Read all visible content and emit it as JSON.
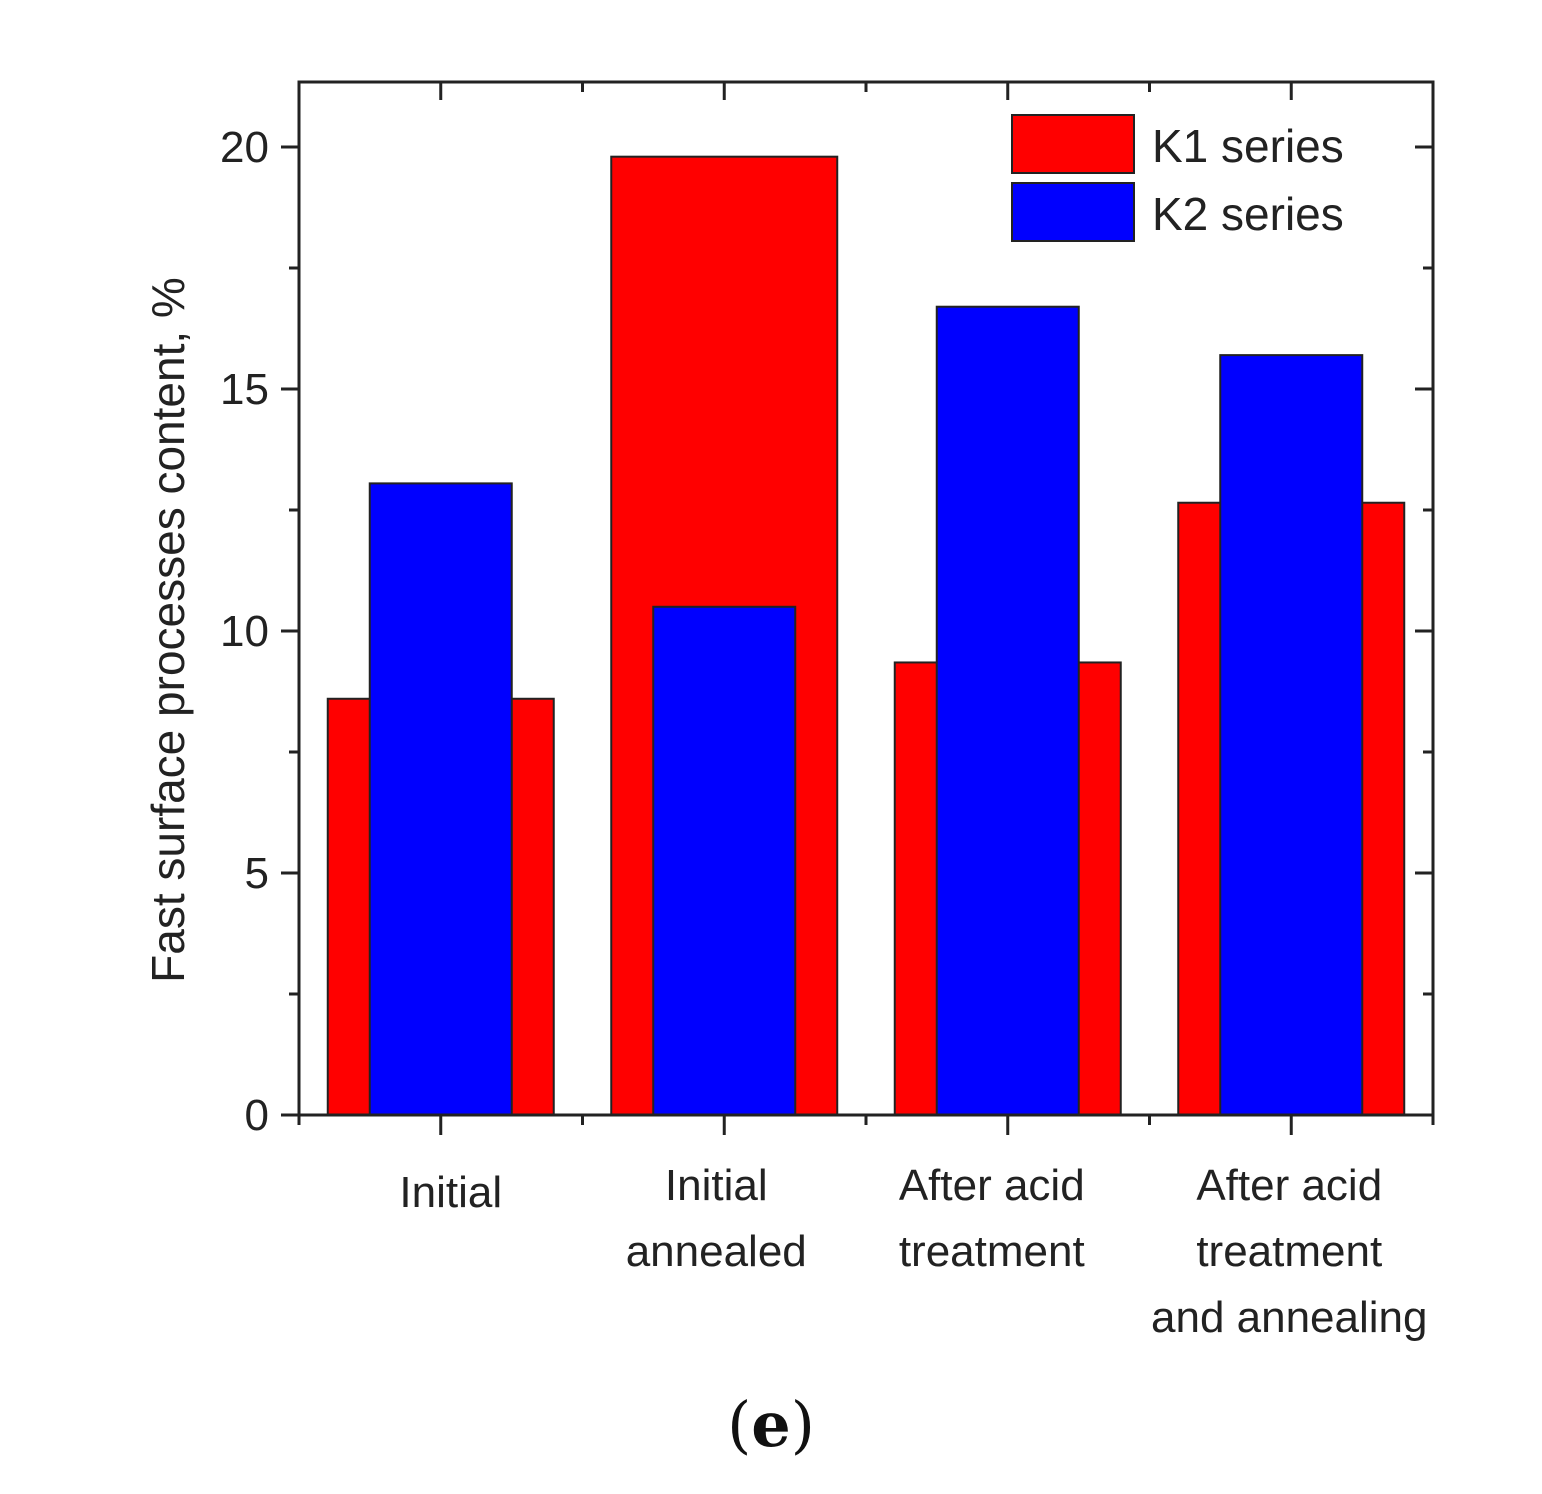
{
  "chart_data": {
    "type": "bar",
    "title": "",
    "xlabel": "",
    "ylabel": "Fast surface processes content, %",
    "ylim": [
      0,
      20.8
    ],
    "yticks": [
      "0",
      "5",
      "10",
      "15",
      "20"
    ],
    "grid": false,
    "legend_position": "top-right",
    "categories": [
      [
        "Initial"
      ],
      [
        "Initial",
        "annealed"
      ],
      [
        "After acid",
        "treatment"
      ],
      [
        "After acid",
        "treatment",
        "and annealing"
      ]
    ],
    "series": [
      {
        "name": "K1 series",
        "color": "#ff0000",
        "values": [
          8.6,
          19.8,
          9.35,
          12.65
        ]
      },
      {
        "name": "K2 series",
        "color": "#0000ff",
        "values": [
          13.05,
          10.5,
          16.7,
          15.7
        ]
      }
    ],
    "panel_label": "e"
  }
}
